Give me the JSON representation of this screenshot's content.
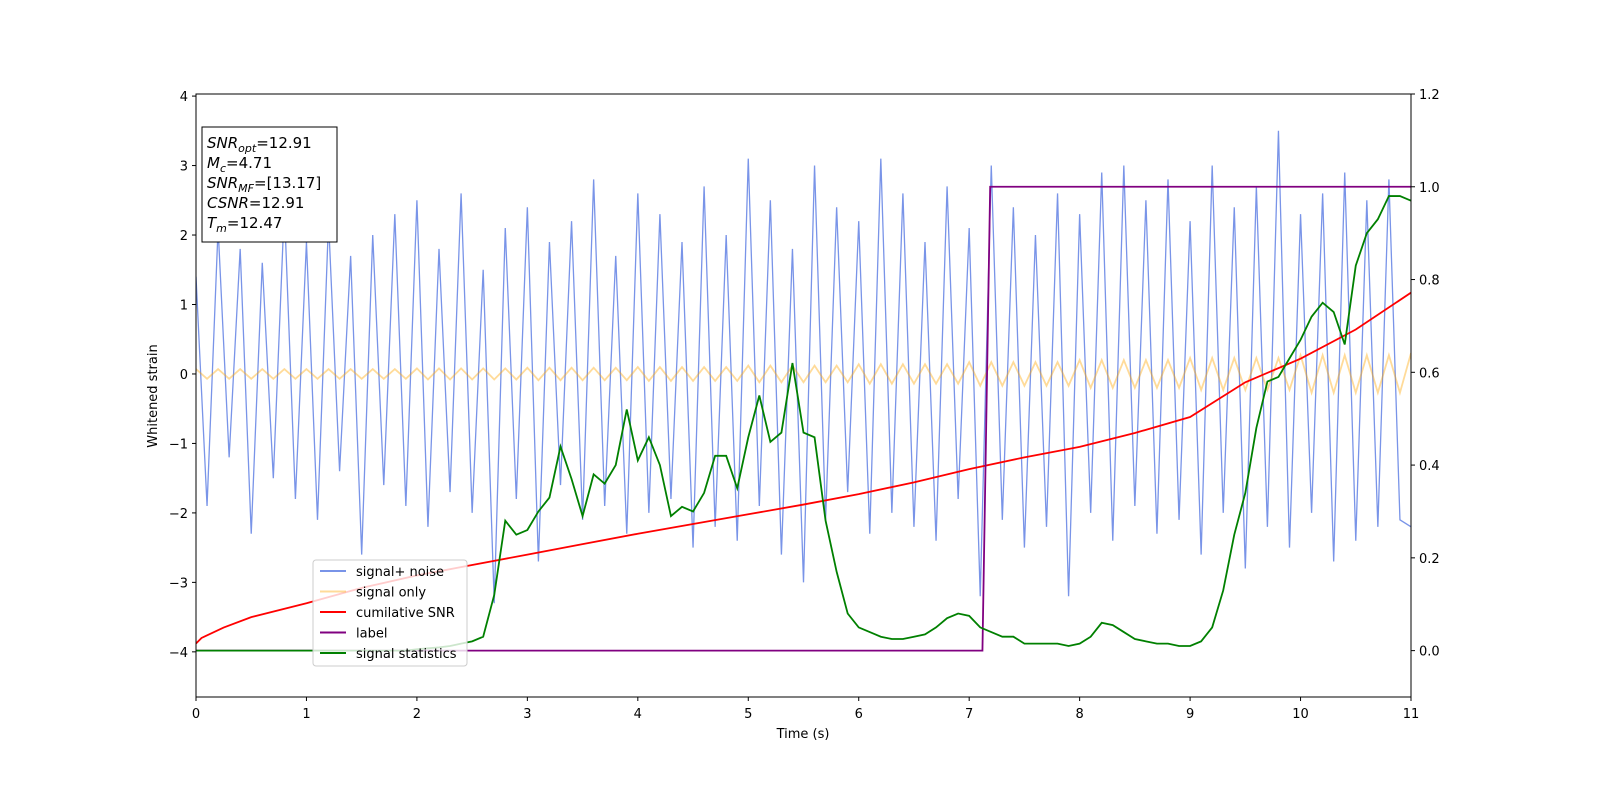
{
  "chart_data": {
    "type": "line",
    "xlabel": "Time (s)",
    "ylabel": "Whitened strain",
    "xlim": [
      0,
      11
    ],
    "xticks": [
      0,
      1,
      2,
      3,
      4,
      5,
      6,
      7,
      8,
      9,
      10,
      11
    ],
    "ylim": [
      -4.65,
      4.03
    ],
    "yticks": [
      {
        "value": -4,
        "label": "−4"
      },
      {
        "value": -3,
        "label": "−3"
      },
      {
        "value": -2,
        "label": "−2"
      },
      {
        "value": -1,
        "label": "−1"
      },
      0,
      1,
      2,
      3,
      4
    ],
    "y2lim": [
      -0.1,
      1.2
    ],
    "y2ticks": [
      {
        "value": 0,
        "label": "0.0"
      },
      0.2,
      0.4,
      0.6,
      0.8,
      {
        "value": 1,
        "label": "1.0"
      },
      1.2
    ],
    "annotation": [
      {
        "text": "SNR",
        "sub": "opt",
        "after": "=12.91"
      },
      {
        "text": "M",
        "sub": "c",
        "after": "=4.71"
      },
      {
        "text": "SNR",
        "sub": "MF",
        "after": "=[13.17]"
      },
      {
        "text": "CSNR",
        "after": "=12.91"
      },
      {
        "text": "T",
        "sub": "m",
        "after": "=12.47"
      }
    ],
    "x": [
      0,
      0.1,
      0.2,
      0.3,
      0.4,
      0.5,
      0.6,
      0.7,
      0.8,
      0.9,
      1,
      1.1,
      1.2,
      1.3,
      1.4,
      1.5,
      1.6,
      1.7,
      1.8,
      1.9,
      2,
      2.1,
      2.2,
      2.3,
      2.4,
      2.5,
      2.6,
      2.7,
      2.8,
      2.9,
      3,
      3.1,
      3.2,
      3.3,
      3.4,
      3.5,
      3.6,
      3.7,
      3.8,
      3.9,
      4,
      4.1,
      4.2,
      4.3,
      4.4,
      4.5,
      4.6,
      4.7,
      4.8,
      4.9,
      5,
      5.1,
      5.2,
      5.3,
      5.4,
      5.5,
      5.6,
      5.7,
      5.8,
      5.9,
      6,
      6.1,
      6.2,
      6.3,
      6.4,
      6.5,
      6.6,
      6.7,
      6.8,
      6.9,
      7,
      7.1,
      7.2,
      7.3,
      7.4,
      7.5,
      7.6,
      7.7,
      7.8,
      7.9,
      8,
      8.1,
      8.2,
      8.3,
      8.4,
      8.5,
      8.6,
      8.7,
      8.8,
      8.9,
      9,
      9.1,
      9.2,
      9.3,
      9.4,
      9.5,
      9.6,
      9.7,
      9.8,
      9.9,
      10,
      10.1,
      10.2,
      10.3,
      10.4,
      10.5,
      10.6,
      10.7,
      10.8,
      10.9,
      11
    ],
    "series": [
      {
        "name": "signal+ noise",
        "color": "#7994e8",
        "values": [
          1.4,
          -1.9,
          2.1,
          -1.2,
          1.8,
          -2.3,
          1.6,
          -1.5,
          2.4,
          -1.8,
          1.9,
          -2.1,
          2.2,
          -1.4,
          1.7,
          -2.6,
          2.0,
          -1.6,
          2.3,
          -1.9,
          2.5,
          -2.2,
          1.8,
          -1.7,
          2.6,
          -2.0,
          1.5,
          -3.3,
          2.1,
          -1.8,
          2.4,
          -2.7,
          1.9,
          -1.6,
          2.2,
          -2.1,
          2.8,
          -1.9,
          1.7,
          -2.3,
          2.6,
          -2.0,
          2.3,
          -1.8,
          1.9,
          -2.5,
          2.7,
          -2.2,
          2.0,
          -2.4,
          3.1,
          -1.9,
          2.5,
          -2.6,
          1.8,
          -3.0,
          3.0,
          -2.1,
          2.4,
          -1.7,
          2.2,
          -2.3,
          3.1,
          -2.0,
          2.6,
          -2.2,
          1.9,
          -2.4,
          2.7,
          -1.8,
          2.1,
          -3.2,
          3.0,
          -2.1,
          2.4,
          -2.5,
          2.0,
          -2.2,
          2.6,
          -3.2,
          2.3,
          -2.0,
          2.9,
          -2.4,
          3.0,
          -1.9,
          2.5,
          -2.3,
          2.8,
          -2.1,
          2.2,
          -2.6,
          3.0,
          -2.0,
          2.4,
          -2.8,
          2.7,
          -2.2,
          3.5,
          -2.5,
          2.3,
          -2.0,
          2.6,
          -2.7,
          2.9,
          -2.4,
          2.5,
          -2.2,
          2.8,
          -2.1,
          -2.2
        ]
      },
      {
        "name": "signal only",
        "color": "#ffa500",
        "opacity": 0.4,
        "values": [
          0.07,
          -0.07,
          0.07,
          -0.07,
          0.07,
          -0.07,
          0.07,
          -0.07,
          0.07,
          -0.07,
          0.07,
          -0.07,
          0.07,
          -0.07,
          0.07,
          -0.07,
          0.07,
          -0.07,
          0.07,
          -0.07,
          0.08,
          -0.08,
          0.08,
          -0.08,
          0.08,
          -0.08,
          0.08,
          -0.08,
          0.08,
          -0.08,
          0.09,
          -0.09,
          0.09,
          -0.09,
          0.09,
          -0.09,
          0.09,
          -0.09,
          0.09,
          -0.09,
          0.1,
          -0.1,
          0.1,
          -0.1,
          0.1,
          -0.1,
          0.1,
          -0.1,
          0.1,
          -0.1,
          0.12,
          -0.12,
          0.12,
          -0.12,
          0.12,
          -0.12,
          0.12,
          -0.12,
          0.12,
          -0.12,
          0.14,
          -0.14,
          0.14,
          -0.14,
          0.14,
          -0.14,
          0.14,
          -0.14,
          0.14,
          -0.14,
          0.17,
          -0.17,
          0.17,
          -0.17,
          0.17,
          -0.17,
          0.17,
          -0.17,
          0.17,
          -0.17,
          0.2,
          -0.2,
          0.2,
          -0.2,
          0.2,
          -0.2,
          0.2,
          -0.2,
          0.2,
          -0.2,
          0.23,
          -0.23,
          0.23,
          -0.23,
          0.23,
          -0.23,
          0.23,
          -0.23,
          0.23,
          -0.23,
          0.27,
          -0.27,
          0.27,
          -0.27,
          0.27,
          -0.27,
          0.27,
          -0.27,
          0.27,
          -0.27,
          0.3
        ]
      },
      {
        "name": "cumilative SNR",
        "color": "#ff0000",
        "x": [
          0,
          0.05,
          0.25,
          0.5,
          1,
          1.5,
          2,
          2.5,
          3,
          3.5,
          4,
          4.5,
          5,
          5.5,
          6,
          6.5,
          7,
          7.5,
          8,
          8.5,
          9,
          9.5,
          10,
          10.5,
          11
        ],
        "values": [
          -3.88,
          -3.8,
          -3.65,
          -3.5,
          -3.3,
          -3.08,
          -2.9,
          -2.75,
          -2.6,
          -2.45,
          -2.3,
          -2.16,
          -2.02,
          -1.88,
          -1.73,
          -1.56,
          -1.37,
          -1.2,
          -1.05,
          -0.85,
          -0.62,
          -0.12,
          0.22,
          0.64,
          1.17
        ]
      },
      {
        "name": "label",
        "color": "#800080",
        "axis": "y2",
        "x": [
          0,
          7.12,
          7.19,
          11
        ],
        "values": [
          0,
          0,
          1,
          1
        ]
      },
      {
        "name": "signal statistics",
        "color": "#008000",
        "axis": "y2",
        "values": [
          0,
          0,
          0,
          0,
          0,
          0,
          0,
          0,
          0,
          0,
          0,
          0,
          0,
          0,
          0,
          0,
          0,
          0,
          0,
          0,
          0.003,
          0.005,
          0.007,
          0.01,
          0.015,
          0.02,
          0.03,
          0.12,
          0.28,
          0.25,
          0.26,
          0.3,
          0.33,
          0.44,
          0.37,
          0.29,
          0.38,
          0.36,
          0.4,
          0.52,
          0.41,
          0.46,
          0.4,
          0.29,
          0.31,
          0.3,
          0.34,
          0.42,
          0.42,
          0.35,
          0.46,
          0.55,
          0.45,
          0.47,
          0.62,
          0.47,
          0.46,
          0.28,
          0.17,
          0.08,
          0.05,
          0.04,
          0.03,
          0.025,
          0.025,
          0.03,
          0.035,
          0.05,
          0.07,
          0.08,
          0.075,
          0.05,
          0.04,
          0.03,
          0.03,
          0.015,
          0.015,
          0.015,
          0.015,
          0.01,
          0.015,
          0.03,
          0.06,
          0.055,
          0.04,
          0.025,
          0.02,
          0.015,
          0.015,
          0.01,
          0.01,
          0.02,
          0.05,
          0.13,
          0.25,
          0.34,
          0.48,
          0.58,
          0.59,
          0.63,
          0.67,
          0.72,
          0.75,
          0.73,
          0.66,
          0.83,
          0.9,
          0.93,
          0.98,
          0.98,
          0.97
        ]
      }
    ]
  }
}
